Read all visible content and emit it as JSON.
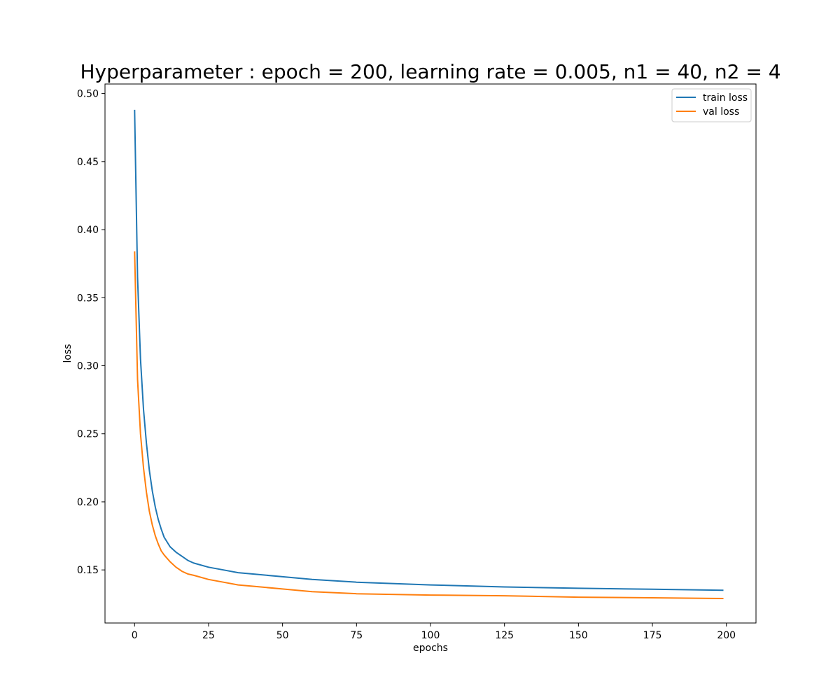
{
  "chart_data": {
    "type": "line",
    "title": "Hyperparameter : epoch = 200, learning rate = 0.005, n1 = 40, n2 = 4",
    "xlabel": "epochs",
    "ylabel": "loss",
    "xlim": [
      -10,
      210
    ],
    "ylim": [
      0.111,
      0.507
    ],
    "xticks": [
      0,
      25,
      50,
      75,
      100,
      125,
      150,
      175,
      200
    ],
    "xtick_labels": [
      "0",
      "25",
      "50",
      "75",
      "100",
      "125",
      "150",
      "175",
      "200"
    ],
    "yticks": [
      0.15,
      0.2,
      0.25,
      0.3,
      0.35,
      0.4,
      0.45,
      0.5
    ],
    "ytick_labels": [
      "0.15",
      "0.20",
      "0.25",
      "0.30",
      "0.35",
      "0.40",
      "0.45",
      "0.50"
    ],
    "grid": false,
    "legend_position": "top-right",
    "series": [
      {
        "name": "train loss",
        "color": "#1f77b4",
        "x": [
          0,
          1,
          2,
          3,
          4,
          5,
          6,
          7,
          8,
          9,
          10,
          12,
          14,
          16,
          18,
          20,
          25,
          30,
          35,
          40,
          50,
          60,
          75,
          100,
          125,
          150,
          175,
          199
        ],
        "y": [
          0.488,
          0.365,
          0.305,
          0.268,
          0.243,
          0.223,
          0.208,
          0.196,
          0.187,
          0.18,
          0.174,
          0.167,
          0.163,
          0.16,
          0.157,
          0.155,
          0.152,
          0.15,
          0.148,
          0.147,
          0.145,
          0.143,
          0.141,
          0.139,
          0.1375,
          0.1365,
          0.1358,
          0.135
        ]
      },
      {
        "name": "val loss",
        "color": "#ff7f0e",
        "x": [
          0,
          1,
          2,
          3,
          4,
          5,
          6,
          7,
          8,
          9,
          10,
          12,
          14,
          16,
          18,
          20,
          25,
          30,
          35,
          40,
          50,
          60,
          75,
          100,
          125,
          150,
          175,
          199
        ],
        "y": [
          0.384,
          0.29,
          0.25,
          0.225,
          0.207,
          0.193,
          0.183,
          0.175,
          0.169,
          0.164,
          0.161,
          0.156,
          0.152,
          0.149,
          0.147,
          0.146,
          0.143,
          0.141,
          0.139,
          0.138,
          0.136,
          0.134,
          0.1325,
          0.1315,
          0.131,
          0.13,
          0.1295,
          0.129
        ]
      }
    ]
  }
}
